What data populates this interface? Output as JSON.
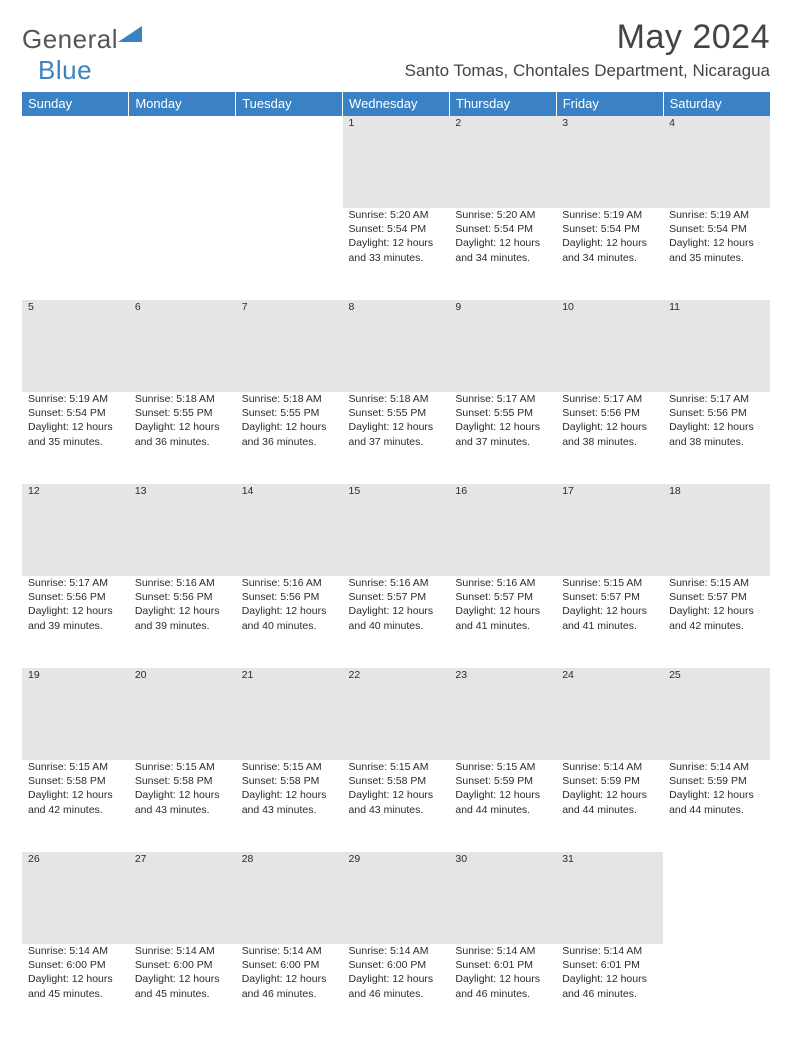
{
  "logo": {
    "text_general": "General",
    "text_blue": "Blue",
    "triangle_color": "#3b82c4",
    "text_gray": "#555555"
  },
  "title": "May 2024",
  "location": "Santo Tomas, Chontales Department, Nicaragua",
  "colors": {
    "header_bg": "#3b82c4",
    "header_text": "#ffffff",
    "daynum_bg": "#e5e5e5",
    "text": "#2b2b2b",
    "page_bg": "#ffffff"
  },
  "weekdays": [
    "Sunday",
    "Monday",
    "Tuesday",
    "Wednesday",
    "Thursday",
    "Friday",
    "Saturday"
  ],
  "weeks": [
    [
      null,
      null,
      null,
      {
        "n": "1",
        "sr": "5:20 AM",
        "ss": "5:54 PM",
        "dl": "12 hours and 33 minutes."
      },
      {
        "n": "2",
        "sr": "5:20 AM",
        "ss": "5:54 PM",
        "dl": "12 hours and 34 minutes."
      },
      {
        "n": "3",
        "sr": "5:19 AM",
        "ss": "5:54 PM",
        "dl": "12 hours and 34 minutes."
      },
      {
        "n": "4",
        "sr": "5:19 AM",
        "ss": "5:54 PM",
        "dl": "12 hours and 35 minutes."
      }
    ],
    [
      {
        "n": "5",
        "sr": "5:19 AM",
        "ss": "5:54 PM",
        "dl": "12 hours and 35 minutes."
      },
      {
        "n": "6",
        "sr": "5:18 AM",
        "ss": "5:55 PM",
        "dl": "12 hours and 36 minutes."
      },
      {
        "n": "7",
        "sr": "5:18 AM",
        "ss": "5:55 PM",
        "dl": "12 hours and 36 minutes."
      },
      {
        "n": "8",
        "sr": "5:18 AM",
        "ss": "5:55 PM",
        "dl": "12 hours and 37 minutes."
      },
      {
        "n": "9",
        "sr": "5:17 AM",
        "ss": "5:55 PM",
        "dl": "12 hours and 37 minutes."
      },
      {
        "n": "10",
        "sr": "5:17 AM",
        "ss": "5:56 PM",
        "dl": "12 hours and 38 minutes."
      },
      {
        "n": "11",
        "sr": "5:17 AM",
        "ss": "5:56 PM",
        "dl": "12 hours and 38 minutes."
      }
    ],
    [
      {
        "n": "12",
        "sr": "5:17 AM",
        "ss": "5:56 PM",
        "dl": "12 hours and 39 minutes."
      },
      {
        "n": "13",
        "sr": "5:16 AM",
        "ss": "5:56 PM",
        "dl": "12 hours and 39 minutes."
      },
      {
        "n": "14",
        "sr": "5:16 AM",
        "ss": "5:56 PM",
        "dl": "12 hours and 40 minutes."
      },
      {
        "n": "15",
        "sr": "5:16 AM",
        "ss": "5:57 PM",
        "dl": "12 hours and 40 minutes."
      },
      {
        "n": "16",
        "sr": "5:16 AM",
        "ss": "5:57 PM",
        "dl": "12 hours and 41 minutes."
      },
      {
        "n": "17",
        "sr": "5:15 AM",
        "ss": "5:57 PM",
        "dl": "12 hours and 41 minutes."
      },
      {
        "n": "18",
        "sr": "5:15 AM",
        "ss": "5:57 PM",
        "dl": "12 hours and 42 minutes."
      }
    ],
    [
      {
        "n": "19",
        "sr": "5:15 AM",
        "ss": "5:58 PM",
        "dl": "12 hours and 42 minutes."
      },
      {
        "n": "20",
        "sr": "5:15 AM",
        "ss": "5:58 PM",
        "dl": "12 hours and 43 minutes."
      },
      {
        "n": "21",
        "sr": "5:15 AM",
        "ss": "5:58 PM",
        "dl": "12 hours and 43 minutes."
      },
      {
        "n": "22",
        "sr": "5:15 AM",
        "ss": "5:58 PM",
        "dl": "12 hours and 43 minutes."
      },
      {
        "n": "23",
        "sr": "5:15 AM",
        "ss": "5:59 PM",
        "dl": "12 hours and 44 minutes."
      },
      {
        "n": "24",
        "sr": "5:14 AM",
        "ss": "5:59 PM",
        "dl": "12 hours and 44 minutes."
      },
      {
        "n": "25",
        "sr": "5:14 AM",
        "ss": "5:59 PM",
        "dl": "12 hours and 44 minutes."
      }
    ],
    [
      {
        "n": "26",
        "sr": "5:14 AM",
        "ss": "6:00 PM",
        "dl": "12 hours and 45 minutes."
      },
      {
        "n": "27",
        "sr": "5:14 AM",
        "ss": "6:00 PM",
        "dl": "12 hours and 45 minutes."
      },
      {
        "n": "28",
        "sr": "5:14 AM",
        "ss": "6:00 PM",
        "dl": "12 hours and 46 minutes."
      },
      {
        "n": "29",
        "sr": "5:14 AM",
        "ss": "6:00 PM",
        "dl": "12 hours and 46 minutes."
      },
      {
        "n": "30",
        "sr": "5:14 AM",
        "ss": "6:01 PM",
        "dl": "12 hours and 46 minutes."
      },
      {
        "n": "31",
        "sr": "5:14 AM",
        "ss": "6:01 PM",
        "dl": "12 hours and 46 minutes."
      },
      null
    ]
  ],
  "labels": {
    "sunrise": "Sunrise:",
    "sunset": "Sunset:",
    "daylight": "Daylight:"
  }
}
